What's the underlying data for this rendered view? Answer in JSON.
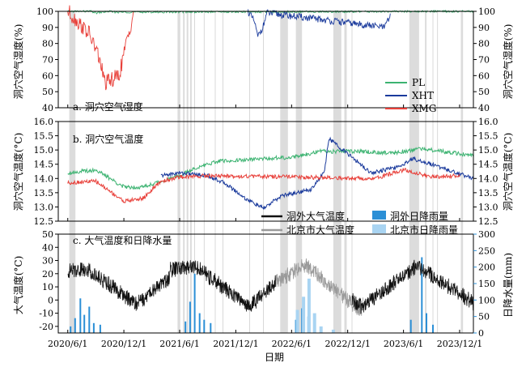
{
  "figure": {
    "xlabel": "日期",
    "x_ticks": [
      "2020/6/1",
      "2020/12/1",
      "2021/6/1",
      "2021/12/1",
      "2022/6/1",
      "2022/12/1",
      "2023/6/1",
      "2023/12/1"
    ]
  },
  "chart_data": [
    {
      "type": "line",
      "panel_label": "a. 洞穴空气湿度",
      "ylabel": "洞穴空气湿度(%)",
      "ylabel_right": "洞穴空气湿度(%)",
      "ylim": [
        40,
        100
      ],
      "yticks": [
        "40",
        "50",
        "60",
        "70",
        "80",
        "90",
        "100"
      ],
      "legend": [
        "PL",
        "XHT",
        "XMG"
      ],
      "legend_placement": "right",
      "colors": {
        "PL": "#3cb371",
        "XHT": "#1a3a9c",
        "XMG": "#e8403a"
      },
      "series": [
        {
          "name": "PL",
          "x": [
            "2020-06-01",
            "2020-08-15",
            "2020-09-01",
            "2020-10-15",
            "2020-11-01",
            "2024-01-15"
          ],
          "y": [
            100,
            100,
            99,
            100,
            99.5,
            100
          ]
        },
        {
          "name": "XHT",
          "x": [
            "2022-01-10",
            "2022-02-01",
            "2022-02-10",
            "2022-03-01",
            "2022-03-12",
            "2023-04-01",
            "2023-04-20"
          ],
          "y": [
            100,
            93,
            84,
            91,
            99,
            90,
            98
          ]
        },
        {
          "name": "XMG",
          "x": [
            "2020-06-01",
            "2020-08-10",
            "2020-09-10",
            "2020-10-01",
            "2020-11-15",
            "2021-01-01"
          ],
          "y": [
            100,
            86,
            72,
            55,
            60,
            99
          ]
        }
      ]
    },
    {
      "type": "line",
      "panel_label": "b. 洞穴空气温度",
      "ylabel": "洞穴空气温度(°C)",
      "ylabel_right": "洞穴空气温度(°C)",
      "ylim": [
        12.5,
        16.0
      ],
      "yticks": [
        "12.5",
        "13.0",
        "13.5",
        "14.0",
        "14.5",
        "15.0",
        "15.5",
        "16.0"
      ],
      "series": [
        {
          "name": "PL",
          "x": [
            "2020-06-01",
            "2020-09-01",
            "2020-12-01",
            "2021-02-01",
            "2021-06-01",
            "2021-08-01",
            "2021-10-01",
            "2022-01-01",
            "2022-06-01",
            "2022-09-01",
            "2023-01-01",
            "2023-05-01",
            "2023-08-01",
            "2024-01-15"
          ],
          "y": [
            14.2,
            14.3,
            13.7,
            13.7,
            14.1,
            14.4,
            14.6,
            14.65,
            14.75,
            14.95,
            14.95,
            14.9,
            15.05,
            14.8
          ]
        },
        {
          "name": "XHT",
          "x": [
            "2021-04-01",
            "2021-06-01",
            "2021-09-01",
            "2021-11-01",
            "2022-01-01",
            "2022-03-01",
            "2022-05-01",
            "2022-08-01",
            "2022-09-15",
            "2022-10-01",
            "2023-02-15",
            "2023-05-15",
            "2023-07-01",
            "2023-09-01",
            "2024-01-15"
          ],
          "y": [
            14.1,
            14.2,
            14.1,
            13.8,
            13.3,
            12.95,
            13.4,
            13.6,
            14.2,
            15.4,
            14.2,
            14.4,
            14.7,
            14.5,
            14.0
          ]
        },
        {
          "name": "XMG",
          "x": [
            "2020-06-01",
            "2020-09-01",
            "2020-12-01",
            "2021-02-01",
            "2021-04-01",
            "2021-06-01",
            "2021-09-01",
            "2023-03-01",
            "2023-06-01",
            "2023-09-01",
            "2023-12-01"
          ],
          "y": [
            13.85,
            13.9,
            13.2,
            13.3,
            13.9,
            14.05,
            14.1,
            14.0,
            14.3,
            14.05,
            14.1
          ]
        }
      ]
    },
    {
      "type": "line+bar",
      "panel_label": "c. 大气温度和日降水量",
      "ylabel": "大气温度(°C)",
      "ylabel_right": "日降水量(mm)",
      "ylim": [
        -25,
        50
      ],
      "ylim_right": [
        0,
        300
      ],
      "yticks": [
        "-20",
        "-10",
        "0",
        "10",
        "20",
        "30",
        "40",
        "50"
      ],
      "yticks_right": [
        "0",
        "50",
        "100",
        "150",
        "200",
        "250",
        "300"
      ],
      "legend": [
        "洞外大气温度",
        "北京市大气温度",
        "洞外日降雨量",
        "北京市日降雨量"
      ],
      "legend_placement": "top",
      "colors": {
        "洞外大气温度": "#111111",
        "北京市大气温度": "#9a9a9a",
        "洞外日降雨量": "#2b8fd6",
        "北京市日降雨量": "#a9d4f2"
      },
      "series": [
        {
          "name": "洞外大气温度",
          "segments": [
            {
              "x": [
                "2020-06-01",
                "2020-08-01",
                "2021-01-10",
                "2021-04-30"
              ],
              "y": [
                22,
                24,
                -3,
                17
              ]
            },
            {
              "x": [
                "2021-05-01",
                "2021-07-20",
                "2022-01-15",
                "2022-04-10"
              ],
              "y": [
                23,
                26,
                -5,
                13
              ]
            },
            {
              "x": [
                "2022-12-15",
                "2023-01-15",
                "2023-07-15",
                "2024-01-15"
              ],
              "y": [
                0,
                -5,
                26,
                -2
              ]
            }
          ]
        },
        {
          "name": "北京市大气温度",
          "x": [
            "2022-04-10",
            "2022-07-15",
            "2023-01-10",
            "2023-01-20"
          ],
          "y": [
            13,
            27,
            -8,
            -4
          ]
        }
      ],
      "rain_outside_mm": [
        {
          "date": "2020-06-10",
          "value": 20
        },
        {
          "date": "2020-06-25",
          "value": 45
        },
        {
          "date": "2020-07-12",
          "value": 105
        },
        {
          "date": "2020-07-25",
          "value": 55
        },
        {
          "date": "2020-08-10",
          "value": 80
        },
        {
          "date": "2020-08-25",
          "value": 30
        },
        {
          "date": "2020-09-15",
          "value": 25
        },
        {
          "date": "2021-06-20",
          "value": 35
        },
        {
          "date": "2021-07-05",
          "value": 95
        },
        {
          "date": "2021-07-20",
          "value": 180
        },
        {
          "date": "2021-08-05",
          "value": 60
        },
        {
          "date": "2021-08-20",
          "value": 40
        },
        {
          "date": "2021-09-10",
          "value": 30
        },
        {
          "date": "2022-06-15",
          "value": 40
        },
        {
          "date": "2022-07-05",
          "value": 75
        },
        {
          "date": "2022-07-25",
          "value": 50
        },
        {
          "date": "2023-06-25",
          "value": 40
        },
        {
          "date": "2023-07-31",
          "value": 230
        },
        {
          "date": "2023-08-15",
          "value": 60
        },
        {
          "date": "2023-09-05",
          "value": 25
        }
      ],
      "rain_beijing_mm": [
        {
          "date": "2022-06-20",
          "value": 70
        },
        {
          "date": "2022-07-10",
          "value": 110
        },
        {
          "date": "2022-07-28",
          "value": 165
        },
        {
          "date": "2022-08-15",
          "value": 60
        },
        {
          "date": "2022-09-05",
          "value": 20
        },
        {
          "date": "2022-10-15",
          "value": 10
        }
      ]
    }
  ]
}
